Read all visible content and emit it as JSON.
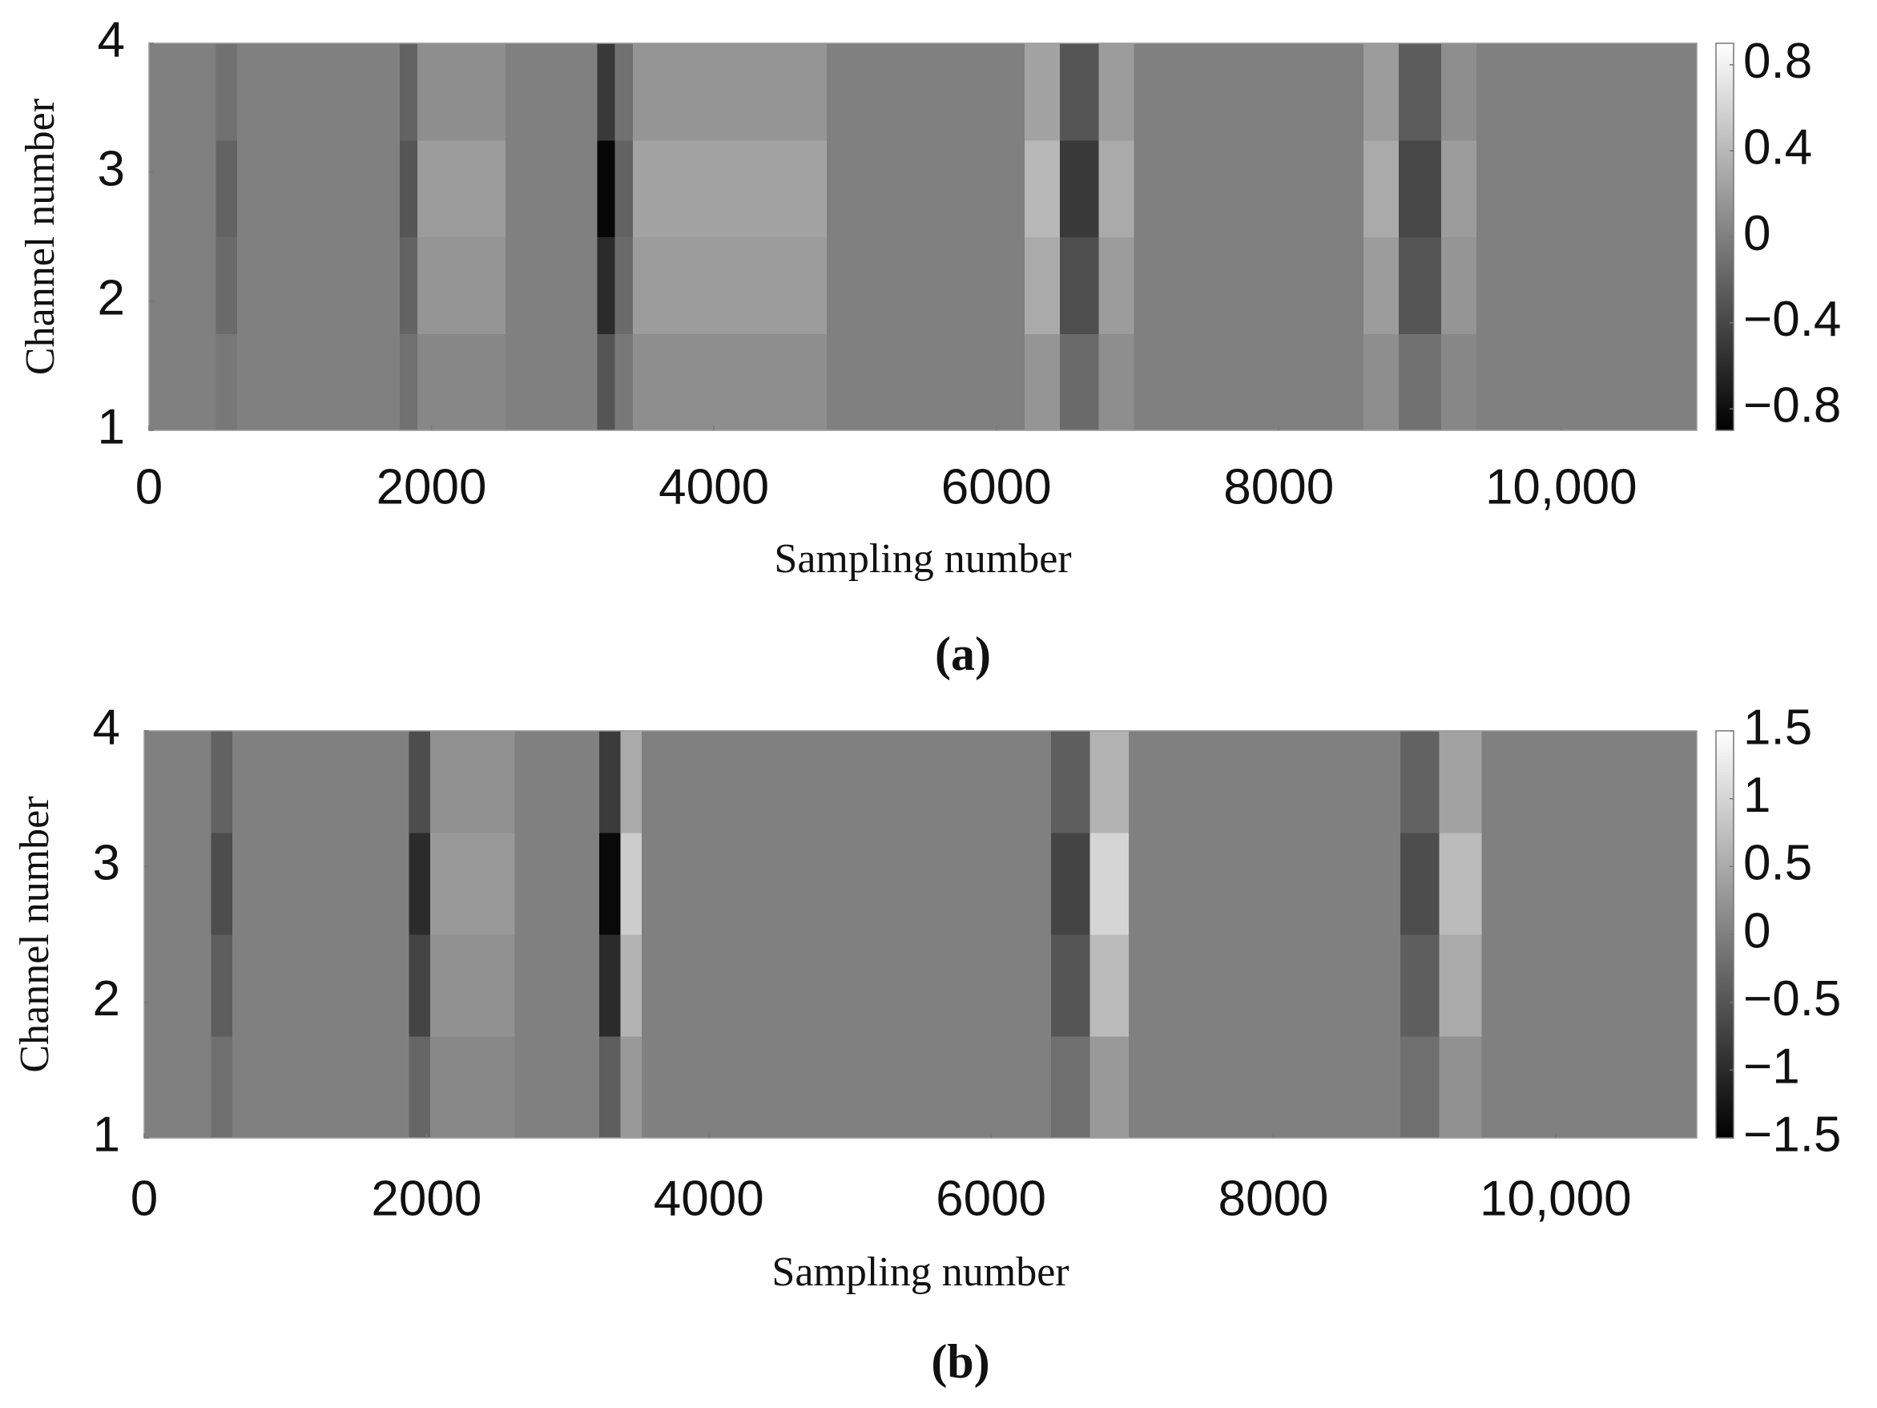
{
  "chart_data": [
    {
      "type": "heatmap",
      "panel_label": "(a)",
      "xlabel": "Sampling number",
      "ylabel": "Channel number",
      "colormap": "gray",
      "xlim": [
        0,
        10960
      ],
      "xticks": [
        0,
        2000,
        4000,
        6000,
        8000,
        {
          "value": 10000,
          "label": "10,000"
        }
      ],
      "ylim": [
        1,
        4
      ],
      "yticks": [
        1,
        2,
        3,
        4
      ],
      "clim": [
        -0.9,
        0.9
      ],
      "cticks": [
        {
          "value": -0.8,
          "label": "−0.8"
        },
        {
          "value": -0.4,
          "label": "−0.4"
        },
        0,
        0.4,
        0.8
      ],
      "x": [
        0,
        400,
        550,
        700,
        1700,
        1850,
        1950,
        3100,
        3250,
        3350,
        3500,
        6100,
        6300,
        6600,
        6850,
        7100,
        8500,
        8700,
        9000,
        9300,
        9500,
        10960
      ],
      "y": [
        1,
        2,
        3,
        4
      ],
      "z": [
        [
          0,
          0,
          -0.05,
          0,
          0,
          -0.1,
          0.05,
          0,
          -0.3,
          -0.05,
          0.1,
          0,
          0.15,
          -0.15,
          0.1,
          0,
          0,
          0.1,
          -0.1,
          0.05,
          0,
          0
        ],
        [
          0,
          0,
          -0.15,
          0,
          0,
          -0.2,
          0.15,
          0,
          -0.6,
          -0.15,
          0.2,
          0,
          0.3,
          -0.35,
          0.2,
          0,
          0,
          0.2,
          -0.3,
          0.15,
          0,
          0
        ],
        [
          0,
          0,
          -0.2,
          0,
          0,
          -0.3,
          0.2,
          0,
          -0.85,
          -0.2,
          0.25,
          0,
          0.4,
          -0.5,
          0.3,
          0,
          0,
          0.3,
          -0.4,
          0.2,
          0,
          0
        ],
        [
          0,
          0,
          -0.1,
          0,
          0,
          -0.2,
          0.1,
          0,
          -0.5,
          -0.1,
          0.15,
          0,
          0.25,
          -0.3,
          0.2,
          0,
          0,
          0.2,
          -0.25,
          0.1,
          0,
          0
        ]
      ]
    },
    {
      "type": "heatmap",
      "panel_label": "(b)",
      "xlabel": "Sampling number",
      "ylabel": "Channel number",
      "colormap": "gray",
      "xlim": [
        0,
        11000
      ],
      "xticks": [
        0,
        2000,
        4000,
        6000,
        8000,
        {
          "value": 10000,
          "label": "10,000"
        }
      ],
      "ylim": [
        1,
        4
      ],
      "yticks": [
        1,
        2,
        3,
        4
      ],
      "clim": [
        -1.5,
        1.5
      ],
      "cticks": [
        {
          "value": -1.5,
          "label": "−1.5"
        },
        {
          "value": -1,
          "label": "−1"
        },
        {
          "value": -0.5,
          "label": "−0.5"
        },
        0,
        0.5,
        1,
        1.5
      ],
      "x": [
        0,
        400,
        550,
        700,
        1800,
        1950,
        2100,
        3150,
        3300,
        3450,
        3600,
        6300,
        6550,
        6850,
        7100,
        8800,
        9000,
        9350,
        9600,
        11000
      ],
      "y": [
        1,
        2,
        3,
        4
      ],
      "z": [
        [
          0,
          0,
          -0.2,
          0,
          0,
          -0.3,
          0.1,
          0,
          -0.4,
          0.3,
          0,
          0,
          -0.2,
          0.3,
          0,
          0,
          -0.2,
          0.2,
          0,
          0
        ],
        [
          0,
          0,
          -0.4,
          0,
          0,
          -0.7,
          0.2,
          0,
          -1.0,
          0.6,
          0,
          0,
          -0.5,
          0.7,
          0,
          0,
          -0.4,
          0.5,
          0,
          0
        ],
        [
          0,
          0,
          -0.6,
          0,
          0,
          -1.0,
          0.3,
          0,
          -1.4,
          0.9,
          0,
          0,
          -0.7,
          1.0,
          0,
          0,
          -0.6,
          0.7,
          0,
          0
        ],
        [
          0,
          0,
          -0.35,
          0,
          0,
          -0.6,
          0.2,
          0,
          -0.8,
          0.5,
          0,
          0,
          -0.4,
          0.6,
          0,
          0,
          -0.35,
          0.4,
          0,
          0
        ]
      ]
    }
  ]
}
